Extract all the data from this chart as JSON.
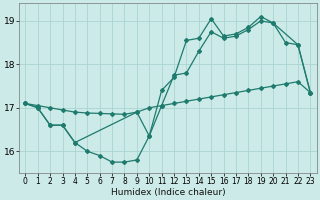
{
  "xlabel": "Humidex (Indice chaleur)",
  "bg_color": "#cceae7",
  "grid_color": "#aad4d0",
  "line_color": "#1e7b6e",
  "xlim": [
    -0.5,
    23.5
  ],
  "ylim": [
    15.5,
    19.4
  ],
  "yticks": [
    16,
    17,
    18,
    19
  ],
  "xticks": [
    0,
    1,
    2,
    3,
    4,
    5,
    6,
    7,
    8,
    9,
    10,
    11,
    12,
    13,
    14,
    15,
    16,
    17,
    18,
    19,
    20,
    21,
    22,
    23
  ],
  "line1_x": [
    0,
    1,
    2,
    3,
    4,
    5,
    6,
    7,
    8,
    9,
    10,
    11,
    12,
    13,
    14,
    15,
    16,
    17,
    18,
    19,
    20,
    21,
    22,
    23
  ],
  "line1_y": [
    17.1,
    17.05,
    17.0,
    16.95,
    16.9,
    16.88,
    16.87,
    16.86,
    16.85,
    16.9,
    17.0,
    17.05,
    17.1,
    17.15,
    17.2,
    17.25,
    17.3,
    17.35,
    17.4,
    17.45,
    17.5,
    17.55,
    17.6,
    17.35
  ],
  "line2_x": [
    0,
    1,
    2,
    3,
    4,
    5,
    6,
    7,
    8,
    9,
    10,
    11,
    12,
    13,
    14,
    15,
    16,
    17,
    18,
    19,
    20,
    22,
    23
  ],
  "line2_y": [
    17.1,
    17.0,
    16.6,
    16.6,
    16.2,
    16.0,
    15.9,
    15.75,
    15.75,
    15.8,
    16.35,
    17.05,
    17.75,
    17.8,
    18.3,
    18.75,
    18.6,
    18.65,
    18.8,
    19.0,
    18.95,
    18.45,
    17.35
  ],
  "line3_x": [
    0,
    1,
    2,
    3,
    4,
    9,
    10,
    11,
    12,
    13,
    14,
    15,
    16,
    17,
    18,
    19,
    20,
    21,
    22,
    23
  ],
  "line3_y": [
    17.1,
    17.0,
    16.6,
    16.6,
    16.2,
    16.9,
    16.35,
    17.4,
    17.7,
    18.55,
    18.6,
    19.05,
    18.65,
    18.7,
    18.85,
    19.1,
    18.95,
    18.5,
    18.45,
    17.35
  ]
}
